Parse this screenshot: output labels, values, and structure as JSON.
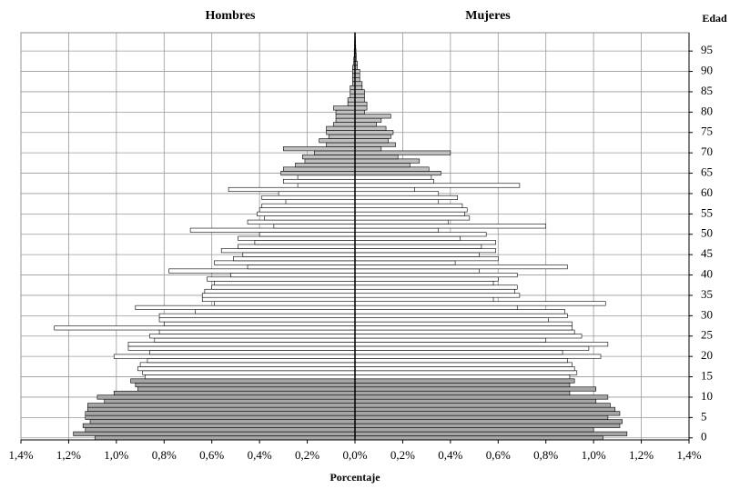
{
  "chart_data": {
    "type": "pyramid",
    "xlabel": "Porcentaje",
    "ylabel": "Edad",
    "y": [
      0,
      1,
      2,
      3,
      4,
      5,
      6,
      7,
      8,
      9,
      10,
      11,
      12,
      13,
      14,
      15,
      16,
      17,
      18,
      19,
      20,
      21,
      22,
      23,
      24,
      25,
      26,
      27,
      28,
      29,
      30,
      31,
      32,
      33,
      34,
      35,
      36,
      37,
      38,
      39,
      40,
      41,
      42,
      43,
      44,
      45,
      46,
      47,
      48,
      49,
      50,
      51,
      52,
      53,
      54,
      55,
      56,
      57,
      58,
      59,
      60,
      61,
      62,
      63,
      64,
      65,
      66,
      67,
      68,
      69,
      70,
      71,
      72,
      73,
      74,
      75,
      76,
      77,
      78,
      79,
      80,
      81,
      82,
      83,
      84,
      85,
      86,
      87,
      88,
      89,
      90,
      91,
      92,
      93,
      94,
      95,
      96,
      97,
      98,
      99
    ],
    "series": [
      {
        "name": "Hombres",
        "values": [
          -1.09,
          -1.18,
          -1.13,
          -1.14,
          -1.11,
          -1.13,
          -1.13,
          -1.12,
          -1.12,
          -1.05,
          -1.08,
          -1.01,
          -0.91,
          -0.92,
          -0.94,
          -0.88,
          -0.89,
          -0.91,
          -0.9,
          -0.87,
          -1.01,
          -0.86,
          -0.95,
          -0.95,
          -0.84,
          -0.86,
          -0.82,
          -1.26,
          -0.8,
          -0.82,
          -0.82,
          -0.67,
          -0.92,
          -0.59,
          -0.64,
          -0.64,
          -0.63,
          -0.6,
          -0.59,
          -0.62,
          -0.52,
          -0.78,
          -0.45,
          -0.59,
          -0.51,
          -0.47,
          -0.56,
          -0.49,
          -0.42,
          -0.49,
          -0.4,
          -0.69,
          -0.34,
          -0.45,
          -0.38,
          -0.41,
          -0.4,
          -0.39,
          -0.29,
          -0.39,
          -0.32,
          -0.53,
          -0.24,
          -0.3,
          -0.24,
          -0.31,
          -0.3,
          -0.25,
          -0.21,
          -0.22,
          -0.17,
          -0.3,
          -0.12,
          -0.15,
          -0.11,
          -0.12,
          -0.12,
          -0.09,
          -0.08,
          -0.08,
          -0.08,
          -0.09,
          -0.03,
          -0.03,
          -0.02,
          -0.02,
          -0.02,
          -0.01,
          -0.01,
          -0.01,
          -0.01,
          -0.01,
          -0.005,
          -0.005,
          -0.003,
          -0.003,
          -0.002,
          -0.002,
          -0.001,
          -0.001
        ]
      },
      {
        "name": "Mujeres",
        "values": [
          1.04,
          1.14,
          1.0,
          1.11,
          1.12,
          1.06,
          1.11,
          1.09,
          1.07,
          1.01,
          1.06,
          0.9,
          1.01,
          0.9,
          0.92,
          0.9,
          0.93,
          0.92,
          0.91,
          0.89,
          1.03,
          0.87,
          0.98,
          1.06,
          0.8,
          0.95,
          0.92,
          0.91,
          0.91,
          0.81,
          0.89,
          0.88,
          0.68,
          1.05,
          0.58,
          0.69,
          0.67,
          0.68,
          0.58,
          0.6,
          0.68,
          0.52,
          0.89,
          0.42,
          0.6,
          0.52,
          0.59,
          0.53,
          0.59,
          0.44,
          0.55,
          0.35,
          0.8,
          0.39,
          0.48,
          0.46,
          0.47,
          0.45,
          0.35,
          0.43,
          0.35,
          0.25,
          0.69,
          0.33,
          0.32,
          0.36,
          0.31,
          0.23,
          0.27,
          0.18,
          0.4,
          0.11,
          0.17,
          0.14,
          0.15,
          0.16,
          0.13,
          0.09,
          0.11,
          0.15,
          0.04,
          0.05,
          0.05,
          0.04,
          0.04,
          0.04,
          0.03,
          0.03,
          0.02,
          0.02,
          0.02,
          0.01,
          0.01,
          0.005,
          0.005,
          0.004,
          0.003,
          0.002,
          0.002,
          0.001
        ]
      }
    ],
    "bar_colors": [
      "#a6a6a6",
      "#a6a6a6",
      "#a6a6a6",
      "#a6a6a6",
      "#a6a6a6",
      "#a6a6a6",
      "#a6a6a6",
      "#a6a6a6",
      "#a6a6a6",
      "#a6a6a6",
      "#a6a6a6",
      "#a6a6a6",
      "#a6a6a6",
      "#a6a6a6",
      "#a6a6a6",
      "#ffffff",
      "#ffffff",
      "#ffffff",
      "#ffffff",
      "#ffffff",
      "#ffffff",
      "#ffffff",
      "#ffffff",
      "#ffffff",
      "#ffffff",
      "#ffffff",
      "#ffffff",
      "#ffffff",
      "#ffffff",
      "#ffffff",
      "#ffffff",
      "#ffffff",
      "#ffffff",
      "#ffffff",
      "#ffffff",
      "#ffffff",
      "#ffffff",
      "#ffffff",
      "#ffffff",
      "#ffffff",
      "#ffffff",
      "#ffffff",
      "#ffffff",
      "#ffffff",
      "#ffffff",
      "#ffffff",
      "#ffffff",
      "#ffffff",
      "#ffffff",
      "#ffffff",
      "#ffffff",
      "#ffffff",
      "#ffffff",
      "#ffffff",
      "#ffffff",
      "#ffffff",
      "#ffffff",
      "#ffffff",
      "#ffffff",
      "#ffffff",
      "#ffffff",
      "#ffffff",
      "#ffffff",
      "#ffffff",
      "#ffffff",
      "#bfbfbf",
      "#bfbfbf",
      "#bfbfbf",
      "#bfbfbf",
      "#bfbfbf",
      "#bfbfbf",
      "#bfbfbf",
      "#bfbfbf",
      "#bfbfbf",
      "#bfbfbf",
      "#bfbfbf",
      "#bfbfbf",
      "#bfbfbf",
      "#bfbfbf",
      "#bfbfbf",
      "#bfbfbf",
      "#bfbfbf",
      "#bfbfbf",
      "#bfbfbf",
      "#bfbfbf",
      "#bfbfbf",
      "#bfbfbf",
      "#bfbfbf",
      "#bfbfbf",
      "#bfbfbf",
      "#bfbfbf",
      "#bfbfbf",
      "#bfbfbf",
      "#bfbfbf",
      "#bfbfbf",
      "#bfbfbf",
      "#bfbfbf",
      "#bfbfbf",
      "#bfbfbf",
      "#bfbfbf"
    ],
    "xlim": [
      -1.4,
      1.4
    ],
    "xticks": [
      {
        "value": -1.4,
        "label": "1,4%"
      },
      {
        "value": -1.2,
        "label": "1,2%"
      },
      {
        "value": -1.0,
        "label": "1,0%"
      },
      {
        "value": -0.8,
        "label": "0,8%"
      },
      {
        "value": -0.6,
        "label": "0,6%"
      },
      {
        "value": -0.4,
        "label": "0,4%"
      },
      {
        "value": -0.2,
        "label": "0,2%"
      },
      {
        "value": 0,
        "label": "0,0%"
      },
      {
        "value": 0.2,
        "label": "0,2%"
      },
      {
        "value": 0.4,
        "label": "0,4%"
      },
      {
        "value": 0.6,
        "label": "0,6%"
      },
      {
        "value": 0.8,
        "label": "0,8%"
      },
      {
        "value": 1.0,
        "label": "1,0%"
      },
      {
        "value": 1.2,
        "label": "1,2%"
      },
      {
        "value": 1.4,
        "label": "1,4%"
      }
    ],
    "ylim": [
      -0.5,
      99.5
    ],
    "yticks": [
      0,
      5,
      10,
      15,
      20,
      25,
      30,
      35,
      40,
      45,
      50,
      55,
      60,
      65,
      70,
      75,
      80,
      85,
      90,
      95
    ],
    "grid": true
  }
}
